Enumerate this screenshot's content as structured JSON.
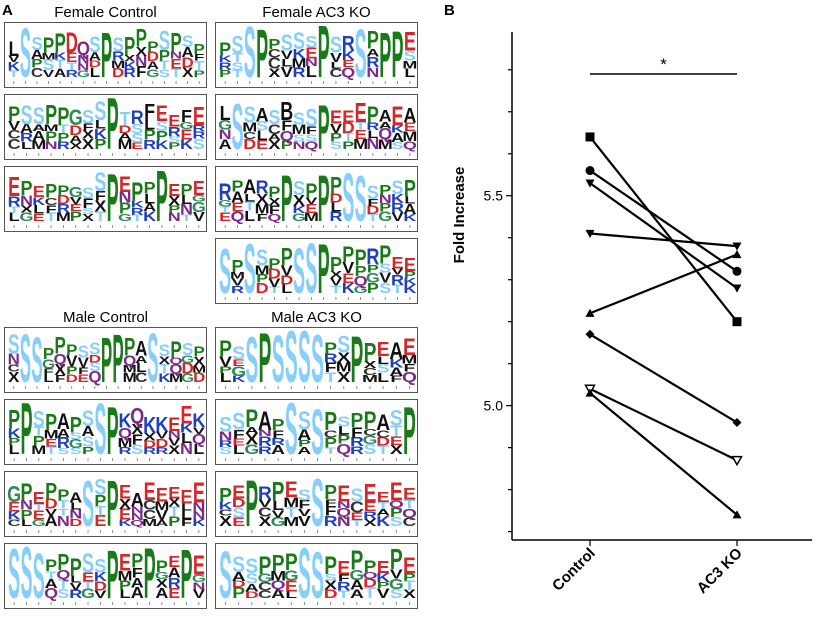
{
  "panels": {
    "a": "A",
    "b": "B"
  },
  "panel_a": {
    "titles": {
      "female_control": "Female Control",
      "female_ac3ko": "Female AC3 KO",
      "male_control": "Male Control",
      "male_ac3ko": "Male AC3 KO"
    },
    "logos": [
      {
        "group": "female_control",
        "seq": "LSSPPDQSPSPPPSPSP"
      },
      {
        "group": "female_control",
        "seq": "PSSPPGSSPTRFEEFE"
      },
      {
        "group": "female_control",
        "seq": "EPEPPGSSPEPPPEPE"
      },
      {
        "group": "female_ac3ko",
        "seq": "PSSPPSSSPSRSPPPE"
      },
      {
        "group": "female_ac3ko",
        "seq": "LSSASBSSPEEEPAEA"
      },
      {
        "group": "female_ac3ko",
        "seq": "RPARPPSPPPSSSPSP"
      },
      {
        "group": "female_ac3ko",
        "seq": "SPSSPPSSPPPPRPEE"
      },
      {
        "group": "male_control",
        "seq": "SSSPPPSSPPPASSPSP"
      },
      {
        "group": "male_control",
        "seq": "PPSPAPSSPKQKKEEK"
      },
      {
        "group": "male_control",
        "seq": "GPEPPASSPEAEEEEE"
      },
      {
        "group": "male_control",
        "seq": "SSSPPPSSPEPPPEPE"
      },
      {
        "group": "male_ac3ko",
        "seq": "PSSPSSSSPSPPEAE"
      },
      {
        "group": "male_ac3ko",
        "seq": "SSPAPSSSPSPPASP"
      },
      {
        "group": "male_ac3ko",
        "seq": "PEPRPESSPESEEEE"
      },
      {
        "group": "male_ac3ko",
        "seq": "SSSPPPSSPEPPEPE"
      }
    ],
    "letter_colors": {
      "S": "#87cefa",
      "P": "#1a7a1a",
      "E": "#d62728",
      "D": "#d62728",
      "K": "#1f3fbf",
      "R": "#1f3fbf",
      "H": "#1f3fbf",
      "A": "#111111",
      "L": "#111111",
      "V": "#111111",
      "F": "#111111",
      "M": "#111111",
      "I": "#111111",
      "G": "#2e8b57",
      "T": "#87cefa",
      "Q": "#7b2a8a",
      "N": "#7b2a8a",
      "C": "#333333",
      "X": "#111111",
      "B": "#111111",
      "Y": "#2e8b57",
      "W": "#111111"
    }
  },
  "chart_data": {
    "type": "line",
    "title": "",
    "categories": [
      "Control",
      "AC3 KO"
    ],
    "xlabel": "",
    "ylabel": "Fold Increase",
    "ylim": [
      4.68,
      5.89
    ],
    "yticks": [
      5.0,
      5.5
    ],
    "ytick_labels": [
      "5.0",
      "5.5"
    ],
    "significance": "*",
    "series": [
      {
        "name": "pair-1",
        "marker": "square",
        "values": [
          5.64,
          5.2
        ]
      },
      {
        "name": "pair-2",
        "marker": "circle",
        "values": [
          5.56,
          5.32
        ]
      },
      {
        "name": "pair-3",
        "marker": "triangle-down",
        "values": [
          5.53,
          5.28
        ]
      },
      {
        "name": "pair-4",
        "marker": "triangle-down",
        "values": [
          5.41,
          5.38
        ]
      },
      {
        "name": "pair-5",
        "marker": "triangle-up",
        "values": [
          5.22,
          5.36
        ]
      },
      {
        "name": "pair-6",
        "marker": "diamond",
        "values": [
          5.17,
          4.96
        ]
      },
      {
        "name": "pair-7",
        "marker": "triangle-down-open",
        "values": [
          5.04,
          4.87
        ]
      },
      {
        "name": "pair-8",
        "marker": "triangle-up",
        "values": [
          5.03,
          4.74
        ]
      }
    ]
  }
}
